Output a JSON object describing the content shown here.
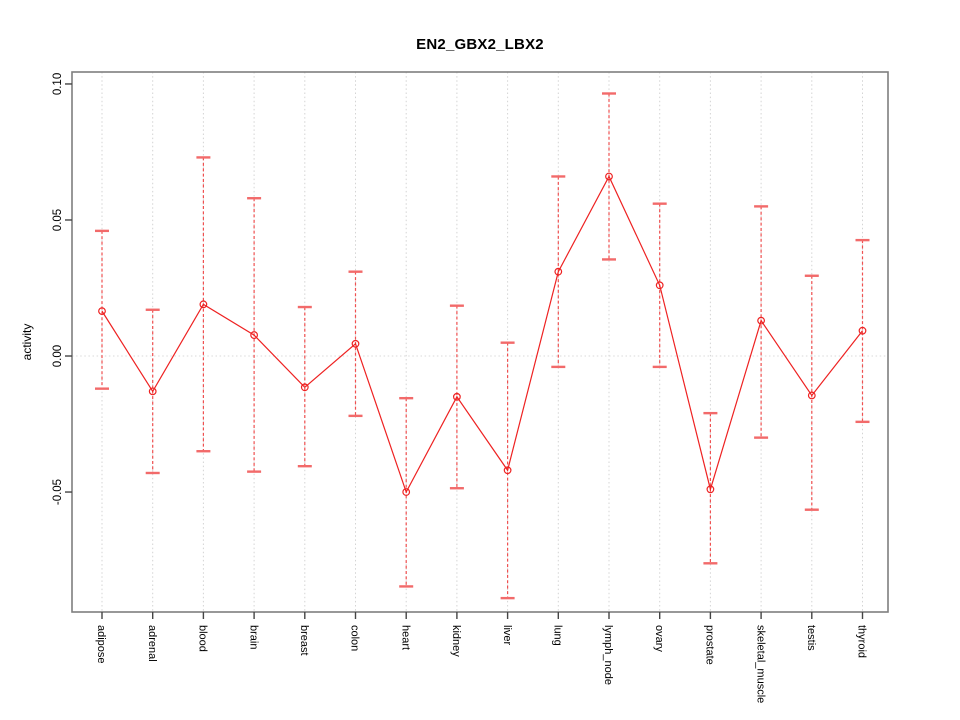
{
  "title": "EN2_GBX2_LBX2",
  "chart_data": {
    "type": "line",
    "subtype": "points-with-error-bars",
    "title": "EN2_GBX2_LBX2",
    "xlabel": "",
    "ylabel": "activity",
    "categories": [
      "adipose",
      "adrenal",
      "blood",
      "brain",
      "breast",
      "colon",
      "heart",
      "kidney",
      "liver",
      "lung",
      "lymph_node",
      "ovary",
      "prostate",
      "skeletal_muscle",
      "testis",
      "thyroid"
    ],
    "series": [
      {
        "name": "activity",
        "values": [
          0.0165,
          -0.013,
          0.019,
          0.0077,
          -0.0115,
          0.0045,
          -0.05,
          -0.015,
          -0.042,
          0.031,
          0.066,
          0.026,
          -0.049,
          0.013,
          -0.0145,
          0.0093
        ],
        "lower": [
          -0.012,
          -0.043,
          -0.035,
          -0.0425,
          -0.0405,
          -0.022,
          -0.0847,
          -0.0486,
          -0.089,
          -0.004,
          0.0355,
          -0.004,
          -0.0762,
          -0.03,
          -0.0565,
          -0.0242
        ],
        "upper": [
          0.046,
          0.017,
          0.073,
          0.058,
          0.018,
          0.031,
          -0.0155,
          0.0185,
          0.0049,
          0.066,
          0.0965,
          0.056,
          -0.021,
          0.055,
          0.0295,
          0.0426
        ]
      }
    ],
    "yticks": [
      0.1,
      0.05,
      0.0,
      -0.05
    ],
    "ytick_labels": [
      "0.10",
      "0.05",
      "0.00",
      "-0.05"
    ],
    "ylim": [
      -0.0941,
      0.1044
    ],
    "grid": {
      "vertical_at_categories": true,
      "horizontal_at_zero": true,
      "style": "dotted"
    },
    "legend": "none",
    "colors": {
      "series": "#ee2222",
      "error_bar": "#f05050",
      "cap": "#f26a6a",
      "grid": "#d4d4d4",
      "zero_line": "#d9d9d9",
      "box": "#7f7f7f",
      "tick": "#444444",
      "text": "#000000"
    }
  }
}
